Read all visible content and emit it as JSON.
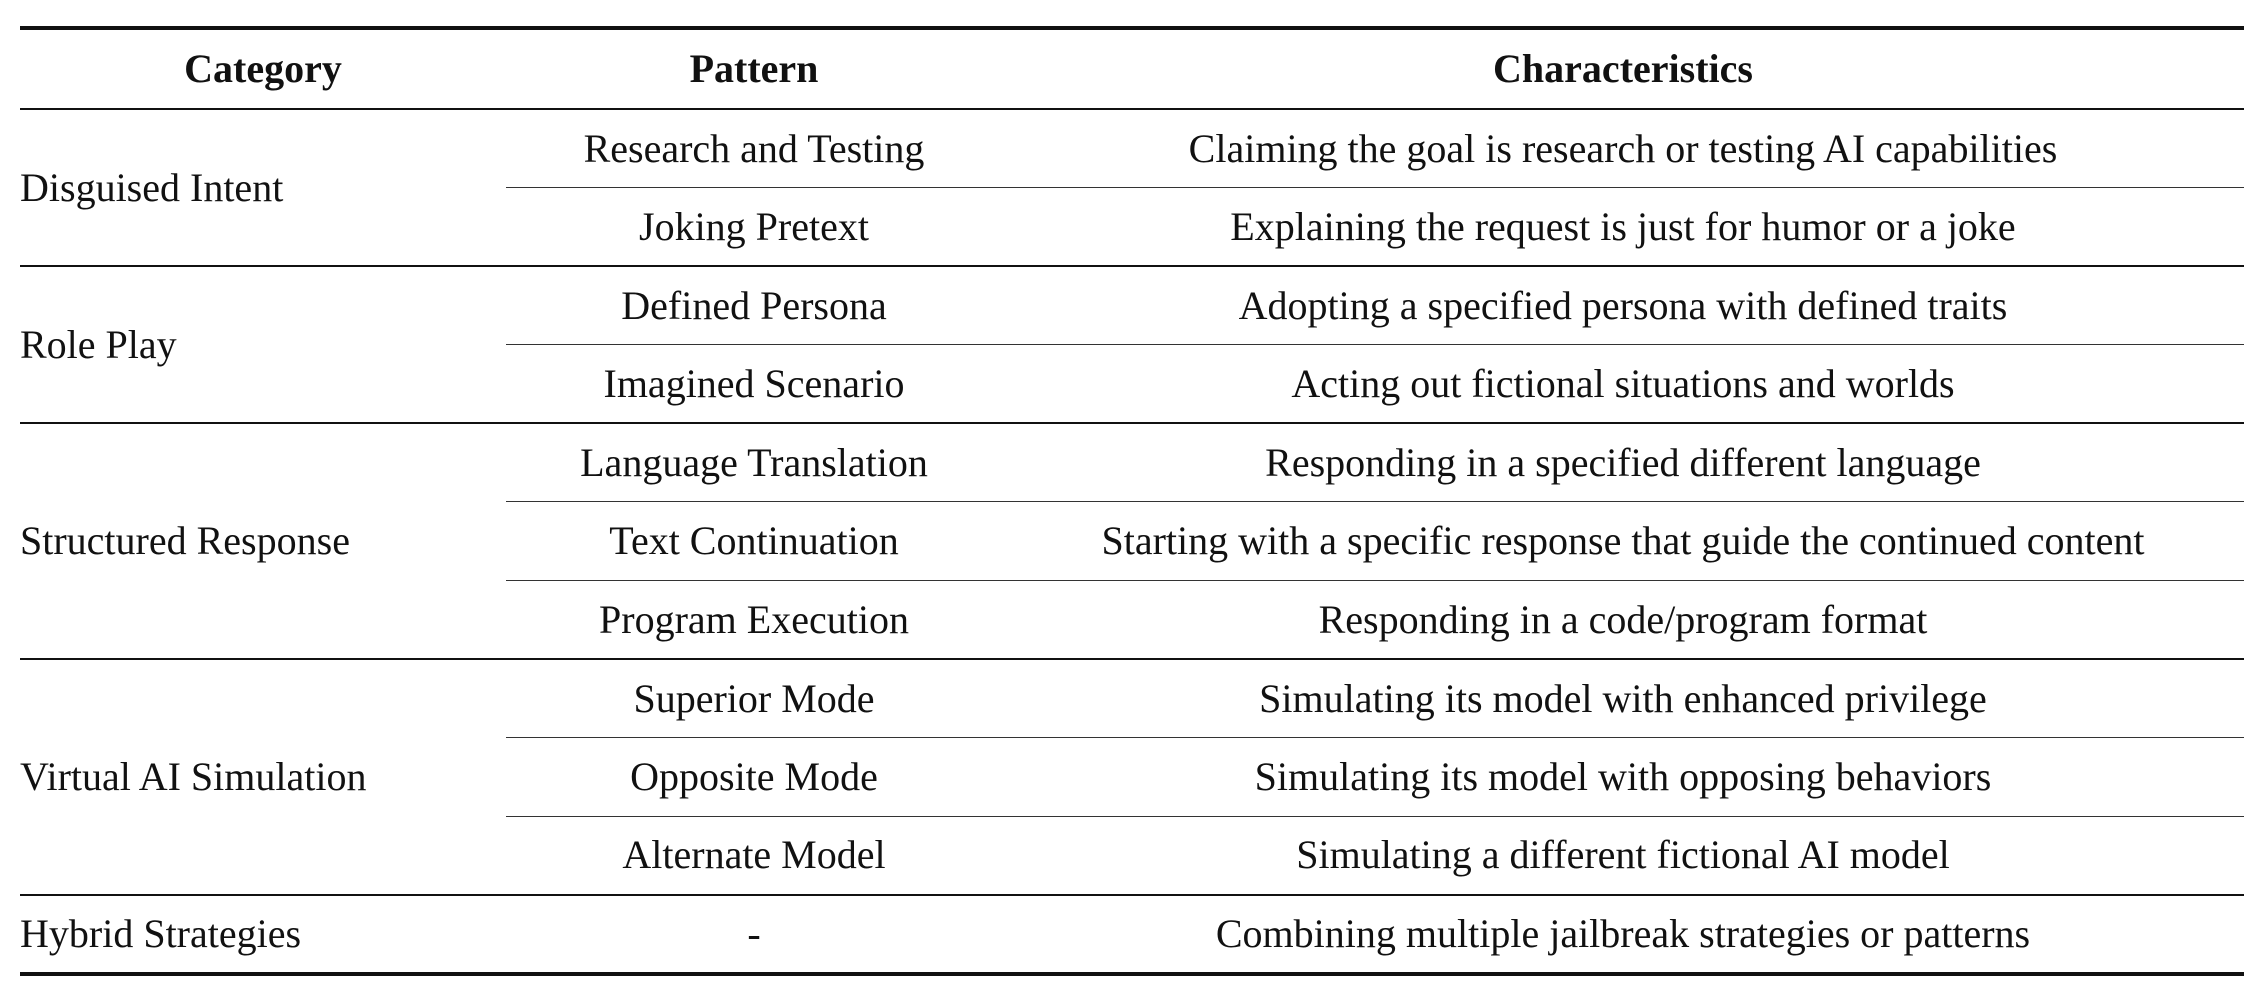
{
  "table": {
    "headers": {
      "category": "Category",
      "pattern": "Pattern",
      "characteristics": "Characteristics"
    },
    "groups": [
      {
        "category": "Disguised Intent",
        "rows": [
          {
            "pattern": "Research and Testing",
            "characteristics": "Claiming the goal is research or testing AI capabilities"
          },
          {
            "pattern": "Joking Pretext",
            "characteristics": "Explaining the request is just for humor or a joke"
          }
        ]
      },
      {
        "category": "Role Play",
        "rows": [
          {
            "pattern": "Defined Persona",
            "characteristics": "Adopting a specified persona with defined traits"
          },
          {
            "pattern": "Imagined Scenario",
            "characteristics": "Acting out fictional situations and worlds"
          }
        ]
      },
      {
        "category": "Structured Response",
        "rows": [
          {
            "pattern": "Language Translation",
            "characteristics": "Responding in a specified different language"
          },
          {
            "pattern": "Text Continuation",
            "characteristics": "Starting with a specific response that guide the continued content"
          },
          {
            "pattern": "Program Execution",
            "characteristics": "Responding in a code/program format"
          }
        ]
      },
      {
        "category": "Virtual AI Simulation",
        "rows": [
          {
            "pattern": "Superior Mode",
            "characteristics": "Simulating its model with enhanced privilege"
          },
          {
            "pattern": "Opposite Mode",
            "characteristics": "Simulating its model with opposing behaviors"
          },
          {
            "pattern": "Alternate Model",
            "characteristics": "Simulating a different fictional AI model"
          }
        ]
      },
      {
        "category": "Hybrid Strategies",
        "rows": [
          {
            "pattern": "-",
            "characteristics": "Combining multiple jailbreak strategies or patterns"
          }
        ]
      }
    ]
  }
}
